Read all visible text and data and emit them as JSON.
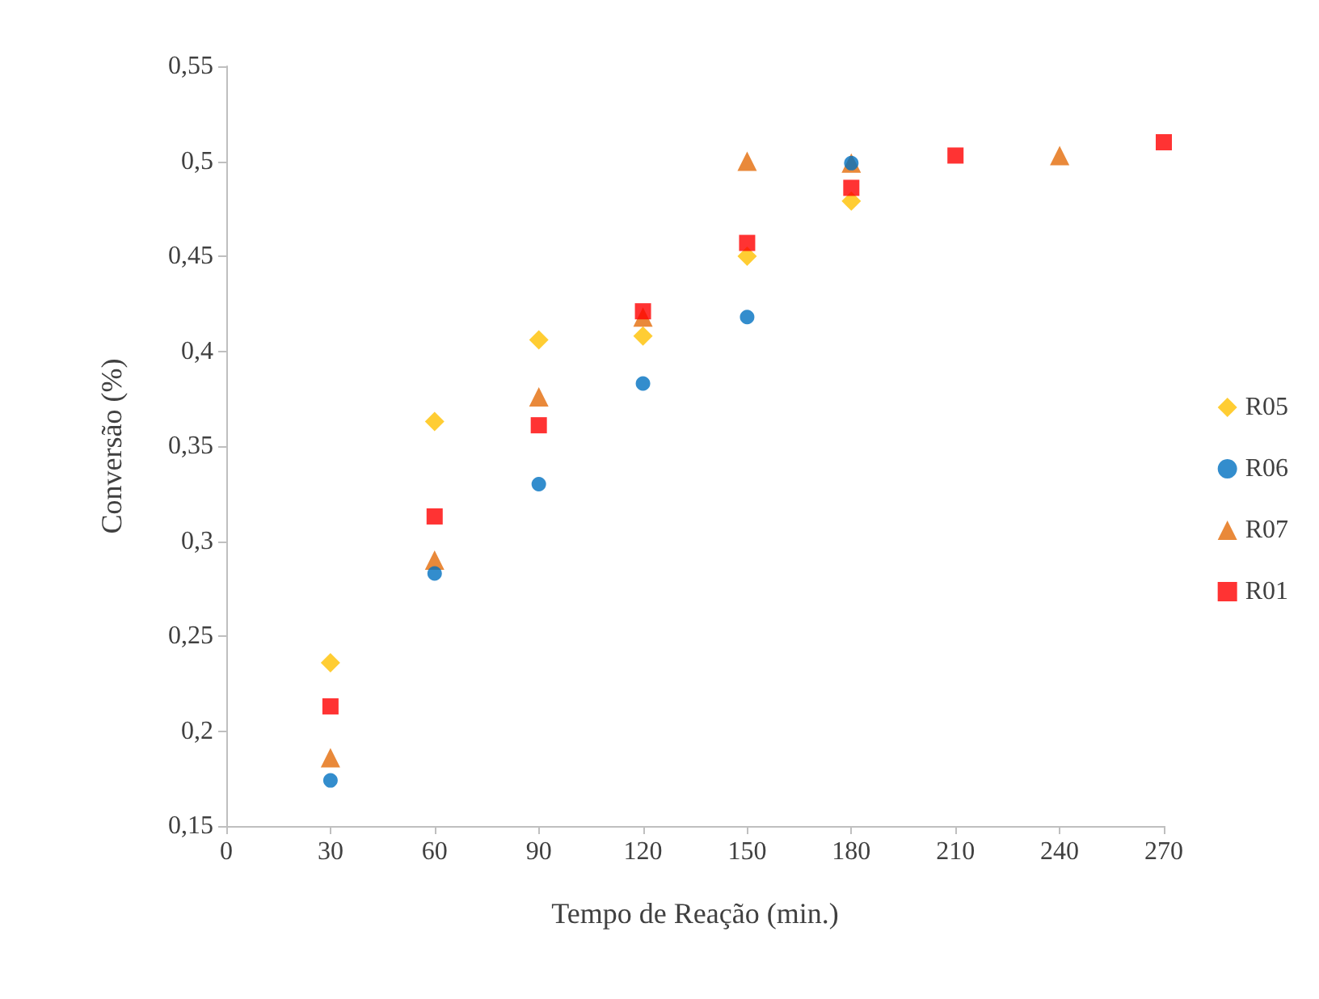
{
  "chart_data": {
    "type": "scatter",
    "xlabel": "Tempo de Reação (min.)",
    "ylabel": "Conversão (%)",
    "xlim": [
      0,
      270
    ],
    "xticks": [
      0,
      30,
      60,
      90,
      120,
      150,
      180,
      210,
      240,
      270
    ],
    "ylim": [
      0.15,
      0.55
    ],
    "yticks": [
      {
        "value": 0.15,
        "label": "0,15"
      },
      {
        "value": 0.2,
        "label": "0,2"
      },
      {
        "value": 0.25,
        "label": "0,25"
      },
      {
        "value": 0.3,
        "label": "0,3"
      },
      {
        "value": 0.35,
        "label": "0,35"
      },
      {
        "value": 0.4,
        "label": "0,4"
      },
      {
        "value": 0.45,
        "label": "0,45"
      },
      {
        "value": 0.5,
        "label": "0,5"
      },
      {
        "value": 0.55,
        "label": "0,55"
      }
    ],
    "grid": false,
    "legend": "right",
    "series": [
      {
        "name": "R05",
        "color": "#ffc000",
        "marker": "diamond",
        "x": [
          30,
          60,
          90,
          120,
          150,
          180
        ],
        "values": [
          0.236,
          0.363,
          0.406,
          0.408,
          0.45,
          0.479
        ]
      },
      {
        "name": "R06",
        "color": "#0070c0",
        "marker": "circle",
        "x": [
          30,
          60,
          90,
          120,
          150,
          180
        ],
        "values": [
          0.174,
          0.283,
          0.33,
          0.383,
          0.418,
          0.499
        ]
      },
      {
        "name": "R07",
        "color": "#e36c09",
        "marker": "triangle",
        "x": [
          30,
          60,
          90,
          120,
          150,
          180,
          240
        ],
        "values": [
          0.186,
          0.29,
          0.376,
          0.418,
          0.5,
          0.499,
          0.503
        ]
      },
      {
        "name": "R01",
        "color": "#ff0000",
        "marker": "square",
        "x": [
          30,
          60,
          90,
          120,
          150,
          180,
          210,
          270
        ],
        "values": [
          0.213,
          0.313,
          0.361,
          0.421,
          0.457,
          0.486,
          0.503,
          0.51
        ]
      }
    ]
  }
}
